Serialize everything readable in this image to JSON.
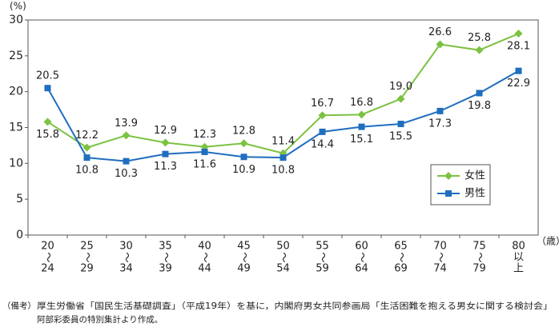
{
  "chart_data": {
    "type": "line",
    "y_unit": "(%)",
    "x_unit": "（歳）",
    "categories": [
      [
        "20",
        "〜",
        "24"
      ],
      [
        "25",
        "〜",
        "29"
      ],
      [
        "30",
        "〜",
        "34"
      ],
      [
        "35",
        "〜",
        "39"
      ],
      [
        "40",
        "〜",
        "44"
      ],
      [
        "45",
        "〜",
        "49"
      ],
      [
        "50",
        "〜",
        "54"
      ],
      [
        "55",
        "〜",
        "59"
      ],
      [
        "60",
        "〜",
        "64"
      ],
      [
        "65",
        "〜",
        "69"
      ],
      [
        "70",
        "〜",
        "74"
      ],
      [
        "75",
        "〜",
        "79"
      ],
      [
        "80",
        "以",
        "上"
      ]
    ],
    "series": [
      {
        "name": "女性",
        "color": "#7cc242",
        "marker": "diamond",
        "values": [
          15.8,
          12.2,
          13.9,
          12.9,
          12.3,
          12.8,
          11.4,
          16.7,
          16.8,
          19.0,
          26.6,
          25.8,
          28.1
        ],
        "value_labels": [
          "15.8",
          "12.2",
          "13.9",
          "12.9",
          "12.3",
          "12.8",
          "11.4",
          "16.7",
          "16.8",
          "19.0",
          "26.6",
          "25.8",
          "28.1"
        ]
      },
      {
        "name": "男性",
        "color": "#1f6ebf",
        "marker": "square",
        "values": [
          20.5,
          10.8,
          10.3,
          11.3,
          11.6,
          10.9,
          10.8,
          14.4,
          15.1,
          15.5,
          17.3,
          19.8,
          22.9
        ],
        "value_labels": [
          "20.5",
          "10.8",
          "10.3",
          "11.3",
          "11.6",
          "10.9",
          "10.8",
          "14.4",
          "15.1",
          "15.5",
          "17.3",
          "19.8",
          "22.9"
        ]
      }
    ],
    "ylim": [
      0,
      30
    ],
    "yticks": [
      0,
      5,
      10,
      15,
      20,
      25,
      30
    ],
    "grid": false,
    "legend": "right",
    "note_label": "（備考）",
    "note_lines": [
      "厚生労働省「国民生活基礎調査」（平成19年）を基に，内閣府男女共同参画局「生活困難を抱える男女に関する検討会」",
      "阿部彩委員の特別集計より作成。"
    ]
  }
}
